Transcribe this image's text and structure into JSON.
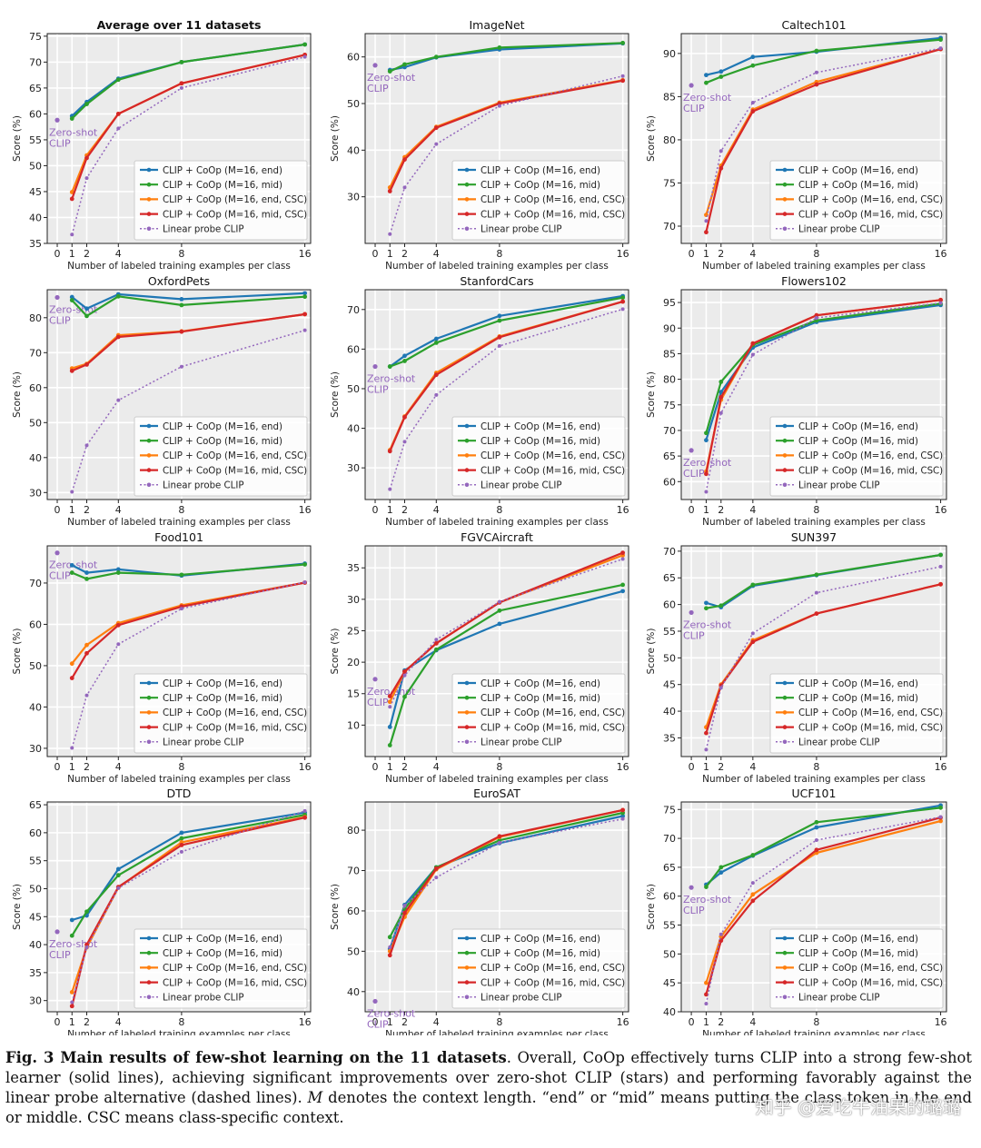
{
  "figure": {
    "legend_labels": [
      "CLIP + CoOp (M=16, end)",
      "CLIP + CoOp (M=16, mid)",
      "CLIP + CoOp (M=16, end, CSC)",
      "CLIP + CoOp (M=16, mid, CSC)",
      "Linear probe CLIP"
    ],
    "series_colors": [
      "#1f77b4",
      "#2ca02c",
      "#ff7f0e",
      "#d62728",
      "#9467bd"
    ],
    "zero_shot_label_line1": "Zero-shot",
    "zero_shot_label_line2": "CLIP",
    "caption_bold": "Fig. 3 Main results of few-shot learning on the 11 datasets",
    "caption_rest_1": ". Overall, CoOp effectively turns CLIP into a strong few-shot learner (solid lines), achieving significant improvements over zero-shot CLIP (stars) and performing favorably against the linear probe alternative (dashed lines). ",
    "caption_italic_m": "M",
    "caption_rest_2": " denotes the context length. “end” or “mid” means putting the class token in the end or middle. CSC means class-specific context.",
    "watermark": "知乎 @爱吃牛油果的璐璐"
  },
  "chart_data": [
    {
      "type": "line",
      "title": "Average over 11 datasets",
      "xlabel": "Number of labeled training examples per class",
      "ylabel": "Score (%)",
      "x": [
        1,
        2,
        4,
        8,
        16
      ],
      "xticks": [
        0,
        1,
        2,
        4,
        8,
        16
      ],
      "ylim": [
        35,
        75.5
      ],
      "yticks": [
        35,
        40,
        45,
        50,
        55,
        60,
        65,
        70,
        75
      ],
      "zero_shot": 58.8,
      "series": [
        {
          "name": "CLIP + CoOp (M=16, end)",
          "values": [
            59.6,
            62.3,
            66.8,
            70.0,
            73.4
          ]
        },
        {
          "name": "CLIP + CoOp (M=16, mid)",
          "values": [
            59.1,
            61.9,
            66.6,
            70.0,
            73.4
          ]
        },
        {
          "name": "CLIP + CoOp (M=16, end, CSC)",
          "values": [
            44.9,
            52.0,
            60.0,
            65.9,
            71.4
          ]
        },
        {
          "name": "CLIP + CoOp (M=16, mid, CSC)",
          "values": [
            43.6,
            51.5,
            60.0,
            65.9,
            71.4
          ]
        },
        {
          "name": "Linear probe CLIP",
          "values": [
            36.7,
            47.6,
            57.2,
            65.0,
            71.0
          ]
        }
      ]
    },
    {
      "type": "line",
      "title": "ImageNet",
      "xlabel": "Number of labeled training examples per class",
      "ylabel": "Score (%)",
      "x": [
        1,
        2,
        4,
        8,
        16
      ],
      "xticks": [
        0,
        1,
        2,
        4,
        8,
        16
      ],
      "ylim": [
        20,
        65
      ],
      "yticks": [
        30,
        40,
        50,
        60
      ],
      "zero_shot": 58.2,
      "series": [
        {
          "name": "CLIP + CoOp (M=16, end)",
          "values": [
            57.2,
            57.8,
            59.9,
            61.6,
            62.9
          ]
        },
        {
          "name": "CLIP + CoOp (M=16, mid)",
          "values": [
            56.9,
            58.4,
            60.0,
            62.0,
            63.0
          ]
        },
        {
          "name": "CLIP + CoOp (M=16, end, CSC)",
          "values": [
            32.0,
            38.5,
            45.0,
            50.2,
            55.0
          ]
        },
        {
          "name": "CLIP + CoOp (M=16, mid, CSC)",
          "values": [
            31.2,
            38.0,
            44.8,
            50.0,
            54.9
          ]
        },
        {
          "name": "Linear probe CLIP",
          "values": [
            22.0,
            32.0,
            41.3,
            49.5,
            55.9
          ]
        }
      ]
    },
    {
      "type": "line",
      "title": "Caltech101",
      "xlabel": "Number of labeled training examples per class",
      "ylabel": "Score (%)",
      "x": [
        1,
        2,
        4,
        8,
        16
      ],
      "xticks": [
        0,
        1,
        2,
        4,
        8,
        16
      ],
      "ylim": [
        68,
        92.3
      ],
      "yticks": [
        70,
        75,
        80,
        85,
        90
      ],
      "zero_shot": 86.3,
      "series": [
        {
          "name": "CLIP + CoOp (M=16, end)",
          "values": [
            87.5,
            87.9,
            89.6,
            90.2,
            91.8
          ]
        },
        {
          "name": "CLIP + CoOp (M=16, mid)",
          "values": [
            86.6,
            87.3,
            88.6,
            90.3,
            91.6
          ]
        },
        {
          "name": "CLIP + CoOp (M=16, end, CSC)",
          "values": [
            71.3,
            77.0,
            83.5,
            86.7,
            90.5
          ]
        },
        {
          "name": "CLIP + CoOp (M=16, mid, CSC)",
          "values": [
            69.3,
            76.7,
            83.3,
            86.4,
            90.5
          ]
        },
        {
          "name": "Linear probe CLIP",
          "values": [
            70.6,
            78.7,
            84.3,
            87.8,
            90.6
          ]
        }
      ]
    },
    {
      "type": "line",
      "title": "OxfordPets",
      "xlabel": "Number of labeled training examples per class",
      "ylabel": "Score (%)",
      "x": [
        1,
        2,
        4,
        8,
        16
      ],
      "xticks": [
        0,
        1,
        2,
        4,
        8,
        16
      ],
      "ylim": [
        28,
        88
      ],
      "yticks": [
        30,
        40,
        50,
        60,
        70,
        80
      ],
      "zero_shot": 85.8,
      "series": [
        {
          "name": "CLIP + CoOp (M=16, end)",
          "values": [
            85.9,
            82.6,
            86.7,
            85.3,
            87.0
          ]
        },
        {
          "name": "CLIP + CoOp (M=16, mid)",
          "values": [
            85.0,
            80.5,
            86.1,
            83.6,
            86.0
          ]
        },
        {
          "name": "CLIP + CoOp (M=16, end, CSC)",
          "values": [
            65.5,
            66.8,
            75.0,
            76.1,
            81.0
          ]
        },
        {
          "name": "CLIP + CoOp (M=16, mid, CSC)",
          "values": [
            64.8,
            66.6,
            74.5,
            76.0,
            81.0
          ]
        },
        {
          "name": "Linear probe CLIP",
          "values": [
            30.2,
            43.5,
            56.4,
            66.0,
            76.4
          ]
        }
      ]
    },
    {
      "type": "line",
      "title": "StanfordCars",
      "xlabel": "Number of labeled training examples per class",
      "ylabel": "Score (%)",
      "x": [
        1,
        2,
        4,
        8,
        16
      ],
      "xticks": [
        0,
        1,
        2,
        4,
        8,
        16
      ],
      "ylim": [
        22,
        75
      ],
      "yticks": [
        30,
        40,
        50,
        60,
        70
      ],
      "zero_shot": 55.6,
      "series": [
        {
          "name": "CLIP + CoOp (M=16, end)",
          "values": [
            55.6,
            58.3,
            62.6,
            68.4,
            73.4
          ]
        },
        {
          "name": "CLIP + CoOp (M=16, mid)",
          "values": [
            55.6,
            57.0,
            61.6,
            67.2,
            73.0
          ]
        },
        {
          "name": "CLIP + CoOp (M=16, end, CSC)",
          "values": [
            34.5,
            43.0,
            54.0,
            63.2,
            72.0
          ]
        },
        {
          "name": "CLIP + CoOp (M=16, mid, CSC)",
          "values": [
            34.2,
            42.8,
            53.5,
            63.0,
            72.0
          ]
        },
        {
          "name": "Linear probe CLIP",
          "values": [
            24.6,
            36.6,
            48.4,
            60.8,
            70.1
          ]
        }
      ]
    },
    {
      "type": "line",
      "title": "Flowers102",
      "xlabel": "Number of labeled training examples per class",
      "ylabel": "Score (%)",
      "x": [
        1,
        2,
        4,
        8,
        16
      ],
      "xticks": [
        0,
        1,
        2,
        4,
        8,
        16
      ],
      "ylim": [
        56.5,
        97.5
      ],
      "yticks": [
        60,
        65,
        70,
        75,
        80,
        85,
        90,
        95
      ],
      "zero_shot": 66.1,
      "series": [
        {
          "name": "CLIP + CoOp (M=16, end)",
          "values": [
            68.1,
            77.5,
            86.2,
            91.2,
            94.5
          ]
        },
        {
          "name": "CLIP + CoOp (M=16, mid)",
          "values": [
            69.5,
            79.5,
            86.7,
            91.5,
            94.8
          ]
        },
        {
          "name": "CLIP + CoOp (M=16, end, CSC)",
          "values": [
            62.0,
            76.0,
            87.0,
            92.5,
            95.5
          ]
        },
        {
          "name": "CLIP + CoOp (M=16, mid, CSC)",
          "values": [
            61.5,
            76.5,
            87.0,
            92.5,
            95.5
          ]
        },
        {
          "name": "Linear probe CLIP",
          "values": [
            58.0,
            73.4,
            84.8,
            92.0,
            94.9
          ]
        }
      ]
    },
    {
      "type": "line",
      "title": "Food101",
      "xlabel": "Number of labeled training examples per class",
      "ylabel": "Score (%)",
      "x": [
        1,
        2,
        4,
        8,
        16
      ],
      "xticks": [
        0,
        1,
        2,
        4,
        8,
        16
      ],
      "ylim": [
        28,
        79
      ],
      "yticks": [
        30,
        40,
        50,
        60,
        70
      ],
      "zero_shot": 77.3,
      "series": [
        {
          "name": "CLIP + CoOp (M=16, end)",
          "values": [
            74.3,
            72.5,
            73.3,
            71.8,
            74.7
          ]
        },
        {
          "name": "CLIP + CoOp (M=16, mid)",
          "values": [
            72.5,
            71.0,
            72.5,
            72.0,
            74.5
          ]
        },
        {
          "name": "CLIP + CoOp (M=16, end, CSC)",
          "values": [
            50.5,
            55.0,
            60.3,
            64.6,
            70.1
          ]
        },
        {
          "name": "CLIP + CoOp (M=16, mid, CSC)",
          "values": [
            47.0,
            53.0,
            59.8,
            64.3,
            70.1
          ]
        },
        {
          "name": "Linear probe CLIP",
          "values": [
            30.1,
            42.8,
            55.2,
            63.8,
            70.2
          ]
        }
      ]
    },
    {
      "type": "line",
      "title": "FGVCAircraft",
      "xlabel": "Number of labeled training examples per class",
      "ylabel": "Score (%)",
      "x": [
        1,
        2,
        4,
        8,
        16
      ],
      "xticks": [
        0,
        1,
        2,
        4,
        8,
        16
      ],
      "ylim": [
        5,
        38.5
      ],
      "yticks": [
        10,
        15,
        20,
        25,
        30,
        35
      ],
      "zero_shot": 17.3,
      "series": [
        {
          "name": "CLIP + CoOp (M=16, end)",
          "values": [
            9.7,
            18.7,
            21.9,
            26.1,
            31.3
          ]
        },
        {
          "name": "CLIP + CoOp (M=16, mid)",
          "values": [
            6.8,
            14.5,
            22.0,
            28.2,
            32.3
          ]
        },
        {
          "name": "CLIP + CoOp (M=16, end, CSC)",
          "values": [
            13.7,
            18.5,
            23.0,
            29.5,
            37.0
          ]
        },
        {
          "name": "CLIP + CoOp (M=16, mid, CSC)",
          "values": [
            14.6,
            18.5,
            23.0,
            29.5,
            37.4
          ]
        },
        {
          "name": "Linear probe CLIP",
          "values": [
            12.9,
            17.9,
            23.6,
            29.6,
            36.4
          ]
        }
      ]
    },
    {
      "type": "line",
      "title": "SUN397",
      "xlabel": "Number of labeled training examples per class",
      "ylabel": "Score (%)",
      "x": [
        1,
        2,
        4,
        8,
        16
      ],
      "xticks": [
        0,
        1,
        2,
        4,
        8,
        16
      ],
      "ylim": [
        31.5,
        71
      ],
      "yticks": [
        35,
        40,
        45,
        50,
        55,
        60,
        65,
        70
      ],
      "zero_shot": 58.5,
      "series": [
        {
          "name": "CLIP + CoOp (M=16, end)",
          "values": [
            60.3,
            59.5,
            63.5,
            65.5,
            69.3
          ]
        },
        {
          "name": "CLIP + CoOp (M=16, mid)",
          "values": [
            59.3,
            59.8,
            63.7,
            65.6,
            69.3
          ]
        },
        {
          "name": "CLIP + CoOp (M=16, end, CSC)",
          "values": [
            37.0,
            45.0,
            53.3,
            58.3,
            63.8
          ]
        },
        {
          "name": "CLIP + CoOp (M=16, mid, CSC)",
          "values": [
            35.9,
            44.8,
            53.0,
            58.3,
            63.8
          ]
        },
        {
          "name": "Linear probe CLIP",
          "values": [
            32.8,
            44.4,
            54.6,
            62.2,
            67.1
          ]
        }
      ]
    },
    {
      "type": "line",
      "title": "DTD",
      "xlabel": "Number of labeled training examples per class",
      "ylabel": "Score (%)",
      "x": [
        1,
        2,
        4,
        8,
        16
      ],
      "xticks": [
        0,
        1,
        2,
        4,
        8,
        16
      ],
      "ylim": [
        28,
        65.5
      ],
      "yticks": [
        30,
        35,
        40,
        45,
        50,
        55,
        60,
        65
      ],
      "zero_shot": 42.3,
      "series": [
        {
          "name": "CLIP + CoOp (M=16, end)",
          "values": [
            44.4,
            45.2,
            53.5,
            60.0,
            63.6
          ]
        },
        {
          "name": "CLIP + CoOp (M=16, mid)",
          "values": [
            41.6,
            45.9,
            52.4,
            59.0,
            63.2
          ]
        },
        {
          "name": "CLIP + CoOp (M=16, end, CSC)",
          "values": [
            31.5,
            39.5,
            50.2,
            58.3,
            62.8
          ]
        },
        {
          "name": "CLIP + CoOp (M=16, mid, CSC)",
          "values": [
            29.0,
            40.0,
            50.3,
            57.8,
            62.7
          ]
        },
        {
          "name": "Linear probe CLIP",
          "values": [
            29.7,
            39.5,
            50.1,
            56.6,
            63.9
          ]
        }
      ]
    },
    {
      "type": "line",
      "title": "EuroSAT",
      "xlabel": "Number of labeled training examples per class",
      "ylabel": "Score (%)",
      "x": [
        1,
        2,
        4,
        8,
        16
      ],
      "xticks": [
        0,
        1,
        2,
        4,
        8,
        16
      ],
      "ylim": [
        35,
        87
      ],
      "yticks": [
        40,
        50,
        60,
        70,
        80
      ],
      "zero_shot": 37.6,
      "series": [
        {
          "name": "CLIP + CoOp (M=16, end)",
          "values": [
            50.6,
            61.5,
            70.8,
            76.8,
            83.5
          ]
        },
        {
          "name": "CLIP + CoOp (M=16, mid)",
          "values": [
            53.5,
            60.5,
            70.8,
            77.5,
            84.3
          ]
        },
        {
          "name": "CLIP + CoOp (M=16, end, CSC)",
          "values": [
            50.0,
            58.5,
            70.3,
            78.3,
            85.0
          ]
        },
        {
          "name": "CLIP + CoOp (M=16, mid, CSC)",
          "values": [
            49.0,
            59.5,
            70.5,
            78.5,
            85.0
          ]
        },
        {
          "name": "Linear probe CLIP",
          "values": [
            51.0,
            61.3,
            68.3,
            76.9,
            82.8
          ]
        }
      ]
    },
    {
      "type": "line",
      "title": "UCF101",
      "xlabel": "Number of labeled training examples per class",
      "ylabel": "Score (%)",
      "x": [
        1,
        2,
        4,
        8,
        16
      ],
      "xticks": [
        0,
        1,
        2,
        4,
        8,
        16
      ],
      "ylim": [
        40,
        76.3
      ],
      "yticks": [
        40,
        45,
        50,
        55,
        60,
        65,
        70,
        75
      ],
      "zero_shot": 61.5,
      "series": [
        {
          "name": "CLIP + CoOp (M=16, end)",
          "values": [
            62.0,
            64.1,
            67.0,
            71.9,
            75.7
          ]
        },
        {
          "name": "CLIP + CoOp (M=16, mid)",
          "values": [
            61.6,
            65.0,
            67.1,
            72.8,
            75.3
          ]
        },
        {
          "name": "CLIP + CoOp (M=16, end, CSC)",
          "values": [
            45.0,
            53.0,
            60.3,
            67.5,
            73.0
          ]
        },
        {
          "name": "CLIP + CoOp (M=16, mid, CSC)",
          "values": [
            43.0,
            52.3,
            59.2,
            68.0,
            73.6
          ]
        },
        {
          "name": "Linear probe CLIP",
          "values": [
            41.4,
            53.4,
            62.3,
            69.7,
            73.7
          ]
        }
      ]
    }
  ]
}
